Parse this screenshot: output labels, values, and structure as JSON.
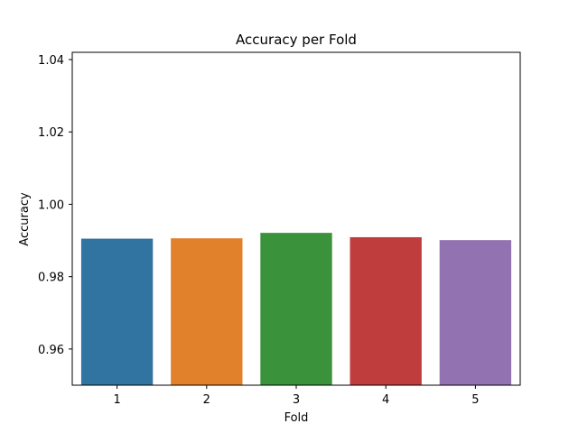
{
  "chart_data": {
    "type": "bar",
    "title": "Accuracy per Fold",
    "xlabel": "Fold",
    "ylabel": "Accuracy",
    "categories": [
      "1",
      "2",
      "3",
      "4",
      "5"
    ],
    "values": [
      0.9905,
      0.9906,
      0.9921,
      0.9909,
      0.9901
    ],
    "colors": [
      "#3274a1",
      "#e1812c",
      "#3a923a",
      "#c03d3e",
      "#9372b2"
    ],
    "ylim": [
      0.95,
      1.042
    ],
    "yticks": [
      0.96,
      0.98,
      1.0,
      1.02,
      1.04
    ],
    "ytick_labels": [
      "0.96",
      "0.98",
      "1.00",
      "1.02",
      "1.04"
    ],
    "grid": false,
    "legend": "none"
  }
}
